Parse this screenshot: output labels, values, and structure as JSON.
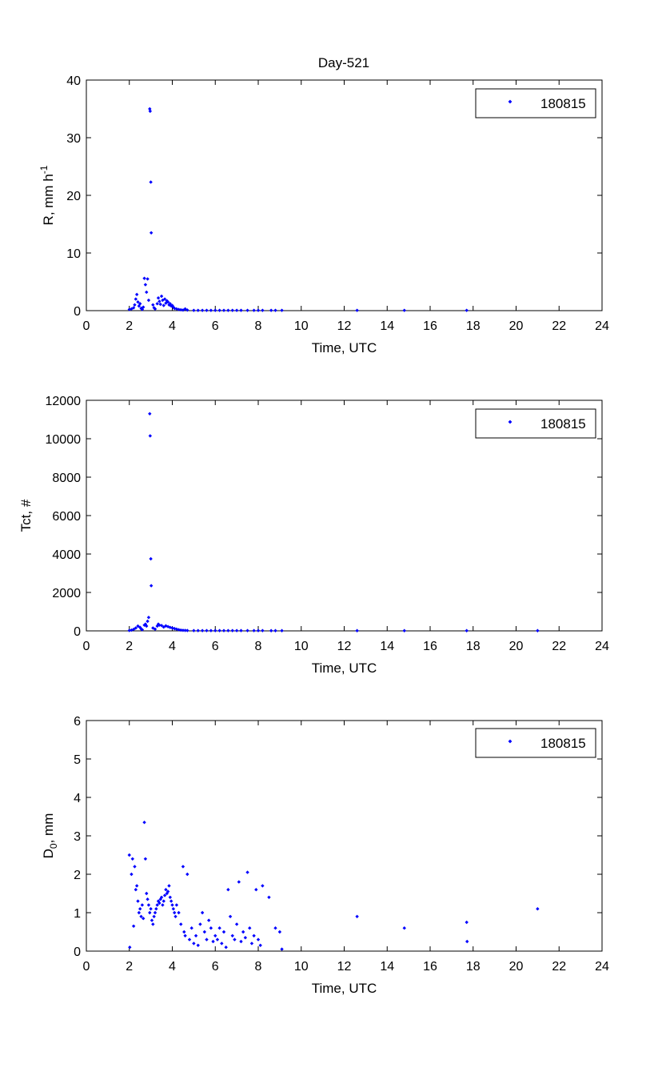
{
  "figure": {
    "title": "Day-521",
    "colors": {
      "marker": "#0000ff",
      "axes": "#000000",
      "background": "#ffffff"
    }
  },
  "chart_data": [
    {
      "type": "scatter",
      "title": "Day-521",
      "xlabel": "Time, UTC",
      "ylabel_parts": {
        "main": "R, mm h",
        "sup": "-1",
        "sub": ""
      },
      "xlim": [
        0,
        24
      ],
      "ylim": [
        0,
        40
      ],
      "xticks": [
        0,
        2,
        4,
        6,
        8,
        10,
        12,
        14,
        16,
        18,
        20,
        22,
        24
      ],
      "yticks": [
        0,
        10,
        20,
        30,
        40
      ],
      "grid": false,
      "legend_position": "top-right",
      "series": [
        {
          "name": "180815",
          "points": [
            [
              2.0,
              0.2
            ],
            [
              2.1,
              0.3
            ],
            [
              2.2,
              0.5
            ],
            [
              2.25,
              1.0
            ],
            [
              2.3,
              2.0
            ],
            [
              2.35,
              2.8
            ],
            [
              2.4,
              1.5
            ],
            [
              2.45,
              0.8
            ],
            [
              2.5,
              1.2
            ],
            [
              2.55,
              0.4
            ],
            [
              2.6,
              0.2
            ],
            [
              2.65,
              0.6
            ],
            [
              2.7,
              5.6
            ],
            [
              2.75,
              4.5
            ],
            [
              2.8,
              3.2
            ],
            [
              2.85,
              5.5
            ],
            [
              2.9,
              1.8
            ],
            [
              2.95,
              35.0
            ],
            [
              2.97,
              34.6
            ],
            [
              3.0,
              22.3
            ],
            [
              3.02,
              13.5
            ],
            [
              3.1,
              1.0
            ],
            [
              3.15,
              0.5
            ],
            [
              3.2,
              0.3
            ],
            [
              3.3,
              1.2
            ],
            [
              3.35,
              2.2
            ],
            [
              3.4,
              1.6
            ],
            [
              3.45,
              1.1
            ],
            [
              3.5,
              2.5
            ],
            [
              3.55,
              1.8
            ],
            [
              3.6,
              0.9
            ],
            [
              3.65,
              2.0
            ],
            [
              3.7,
              1.3
            ],
            [
              3.75,
              1.7
            ],
            [
              3.8,
              1.5
            ],
            [
              3.85,
              1.0
            ],
            [
              3.9,
              1.2
            ],
            [
              3.95,
              0.8
            ],
            [
              4.0,
              0.9
            ],
            [
              4.05,
              0.6
            ],
            [
              4.1,
              0.4
            ],
            [
              4.2,
              0.3
            ],
            [
              4.3,
              0.2
            ],
            [
              4.4,
              0.15
            ],
            [
              4.5,
              0.1
            ],
            [
              4.6,
              0.3
            ],
            [
              4.7,
              0.1
            ],
            [
              5.0,
              0.05
            ],
            [
              5.2,
              0.05
            ],
            [
              5.4,
              0.05
            ],
            [
              5.6,
              0.05
            ],
            [
              5.8,
              0.05
            ],
            [
              6.0,
              0.05
            ],
            [
              6.2,
              0.05
            ],
            [
              6.4,
              0.05
            ],
            [
              6.6,
              0.05
            ],
            [
              6.8,
              0.05
            ],
            [
              7.0,
              0.05
            ],
            [
              7.2,
              0.05
            ],
            [
              7.5,
              0.05
            ],
            [
              7.8,
              0.05
            ],
            [
              8.0,
              0.05
            ],
            [
              8.2,
              0.05
            ],
            [
              8.6,
              0.05
            ],
            [
              8.8,
              0.05
            ],
            [
              9.1,
              0.05
            ],
            [
              12.6,
              0.05
            ],
            [
              14.8,
              0.05
            ],
            [
              17.7,
              0.05
            ]
          ]
        }
      ]
    },
    {
      "type": "scatter",
      "title": "",
      "xlabel": "Time, UTC",
      "ylabel_parts": {
        "main": "Tct, #",
        "sup": "",
        "sub": ""
      },
      "xlim": [
        0,
        24
      ],
      "ylim": [
        0,
        12000
      ],
      "xticks": [
        0,
        2,
        4,
        6,
        8,
        10,
        12,
        14,
        16,
        18,
        20,
        22,
        24
      ],
      "yticks": [
        0,
        2000,
        4000,
        6000,
        8000,
        10000,
        12000
      ],
      "grid": false,
      "legend_position": "top-right",
      "series": [
        {
          "name": "180815",
          "points": [
            [
              2.0,
              20
            ],
            [
              2.1,
              40
            ],
            [
              2.2,
              80
            ],
            [
              2.3,
              150
            ],
            [
              2.4,
              250
            ],
            [
              2.5,
              180
            ],
            [
              2.55,
              100
            ],
            [
              2.6,
              60
            ],
            [
              2.7,
              300
            ],
            [
              2.75,
              350
            ],
            [
              2.8,
              250
            ],
            [
              2.85,
              500
            ],
            [
              2.9,
              700
            ],
            [
              2.95,
              11300
            ],
            [
              2.97,
              10150
            ],
            [
              3.0,
              3750
            ],
            [
              3.02,
              2350
            ],
            [
              3.1,
              150
            ],
            [
              3.2,
              90
            ],
            [
              3.3,
              250
            ],
            [
              3.35,
              350
            ],
            [
              3.4,
              300
            ],
            [
              3.5,
              280
            ],
            [
              3.6,
              200
            ],
            [
              3.7,
              260
            ],
            [
              3.8,
              220
            ],
            [
              3.9,
              180
            ],
            [
              4.0,
              150
            ],
            [
              4.1,
              120
            ],
            [
              4.2,
              90
            ],
            [
              4.3,
              60
            ],
            [
              4.4,
              40
            ],
            [
              4.5,
              30
            ],
            [
              4.6,
              25
            ],
            [
              4.7,
              20
            ],
            [
              5.0,
              15
            ],
            [
              5.2,
              15
            ],
            [
              5.4,
              15
            ],
            [
              5.6,
              15
            ],
            [
              5.8,
              15
            ],
            [
              6.0,
              15
            ],
            [
              6.2,
              15
            ],
            [
              6.4,
              15
            ],
            [
              6.6,
              15
            ],
            [
              6.8,
              15
            ],
            [
              7.0,
              15
            ],
            [
              7.2,
              15
            ],
            [
              7.5,
              15
            ],
            [
              7.8,
              15
            ],
            [
              8.0,
              15
            ],
            [
              8.2,
              15
            ],
            [
              8.6,
              10
            ],
            [
              8.8,
              10
            ],
            [
              9.1,
              10
            ],
            [
              12.6,
              10
            ],
            [
              14.8,
              10
            ],
            [
              17.7,
              10
            ],
            [
              21.0,
              10
            ]
          ]
        }
      ]
    },
    {
      "type": "scatter",
      "title": "",
      "xlabel": "Time, UTC",
      "ylabel_parts": {
        "main": "D",
        "sup": "",
        "sub": "0",
        "suffix": ", mm"
      },
      "xlim": [
        0,
        24
      ],
      "ylim": [
        0,
        6
      ],
      "xticks": [
        0,
        2,
        4,
        6,
        8,
        10,
        12,
        14,
        16,
        18,
        20,
        22,
        24
      ],
      "yticks": [
        0,
        1,
        2,
        3,
        4,
        5,
        6
      ],
      "grid": false,
      "legend_position": "top-right",
      "series": [
        {
          "name": "180815",
          "points": [
            [
              2.0,
              2.5
            ],
            [
              2.02,
              0.1
            ],
            [
              2.1,
              2.0
            ],
            [
              2.15,
              2.4
            ],
            [
              2.2,
              0.65
            ],
            [
              2.25,
              2.2
            ],
            [
              2.3,
              1.6
            ],
            [
              2.35,
              1.7
            ],
            [
              2.4,
              1.3
            ],
            [
              2.45,
              1.0
            ],
            [
              2.5,
              1.1
            ],
            [
              2.55,
              0.9
            ],
            [
              2.6,
              1.2
            ],
            [
              2.65,
              0.85
            ],
            [
              2.7,
              3.35
            ],
            [
              2.75,
              2.4
            ],
            [
              2.8,
              1.5
            ],
            [
              2.85,
              1.35
            ],
            [
              2.9,
              1.2
            ],
            [
              2.95,
              1.0
            ],
            [
              3.0,
              1.1
            ],
            [
              3.05,
              0.8
            ],
            [
              3.1,
              0.7
            ],
            [
              3.15,
              0.9
            ],
            [
              3.2,
              1.0
            ],
            [
              3.25,
              1.1
            ],
            [
              3.3,
              1.2
            ],
            [
              3.35,
              1.3
            ],
            [
              3.4,
              1.25
            ],
            [
              3.45,
              1.35
            ],
            [
              3.5,
              1.4
            ],
            [
              3.55,
              1.2
            ],
            [
              3.6,
              1.3
            ],
            [
              3.65,
              1.45
            ],
            [
              3.7,
              1.6
            ],
            [
              3.75,
              1.5
            ],
            [
              3.8,
              1.55
            ],
            [
              3.85,
              1.7
            ],
            [
              3.9,
              1.4
            ],
            [
              3.95,
              1.3
            ],
            [
              4.0,
              1.2
            ],
            [
              4.05,
              1.1
            ],
            [
              4.1,
              1.0
            ],
            [
              4.15,
              0.9
            ],
            [
              4.2,
              1.2
            ],
            [
              4.3,
              1.0
            ],
            [
              4.4,
              0.7
            ],
            [
              4.5,
              2.2
            ],
            [
              4.55,
              0.5
            ],
            [
              4.6,
              0.4
            ],
            [
              4.7,
              2.0
            ],
            [
              4.8,
              0.3
            ],
            [
              4.9,
              0.6
            ],
            [
              5.0,
              0.2
            ],
            [
              5.1,
              0.4
            ],
            [
              5.2,
              0.15
            ],
            [
              5.3,
              0.7
            ],
            [
              5.4,
              1.0
            ],
            [
              5.5,
              0.5
            ],
            [
              5.6,
              0.3
            ],
            [
              5.7,
              0.8
            ],
            [
              5.8,
              0.6
            ],
            [
              5.9,
              0.25
            ],
            [
              6.0,
              0.4
            ],
            [
              6.1,
              0.3
            ],
            [
              6.2,
              0.6
            ],
            [
              6.3,
              0.2
            ],
            [
              6.4,
              0.5
            ],
            [
              6.5,
              0.1
            ],
            [
              6.6,
              1.6
            ],
            [
              6.7,
              0.9
            ],
            [
              6.8,
              0.4
            ],
            [
              6.9,
              0.3
            ],
            [
              7.0,
              0.7
            ],
            [
              7.1,
              1.8
            ],
            [
              7.2,
              0.25
            ],
            [
              7.3,
              0.5
            ],
            [
              7.4,
              0.35
            ],
            [
              7.5,
              2.05
            ],
            [
              7.6,
              0.6
            ],
            [
              7.7,
              0.2
            ],
            [
              7.8,
              0.4
            ],
            [
              7.9,
              1.6
            ],
            [
              8.0,
              0.3
            ],
            [
              8.1,
              0.15
            ],
            [
              8.2,
              1.7
            ],
            [
              8.5,
              1.4
            ],
            [
              8.8,
              0.6
            ],
            [
              9.0,
              0.5
            ],
            [
              9.1,
              0.05
            ],
            [
              12.6,
              0.9
            ],
            [
              14.8,
              0.6
            ],
            [
              17.7,
              0.75
            ],
            [
              17.72,
              0.25
            ],
            [
              21.0,
              1.1
            ]
          ]
        }
      ]
    }
  ]
}
